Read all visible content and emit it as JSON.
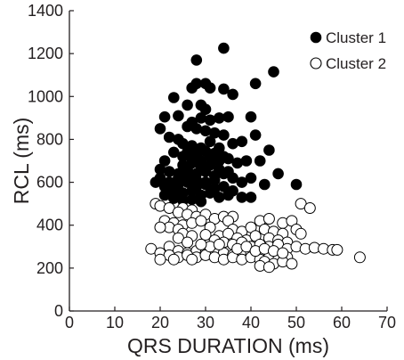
{
  "chart_data": {
    "type": "scatter",
    "title": "",
    "xlabel": "QRS DURATION (ms)",
    "ylabel": "RCL (ms)",
    "xlim": [
      0,
      70
    ],
    "ylim": [
      0,
      1400
    ],
    "xticks": [
      0,
      10,
      20,
      30,
      40,
      50,
      60,
      70
    ],
    "yticks": [
      0,
      200,
      400,
      600,
      800,
      1000,
      1200,
      1400
    ],
    "grid": false,
    "legend_position": "top-right",
    "series": [
      {
        "name": "Cluster 1",
        "marker": "filled-circle",
        "color": "#000000",
        "points": [
          [
            34,
            1225
          ],
          [
            28,
            1170
          ],
          [
            45,
            1115
          ],
          [
            28,
            1060
          ],
          [
            30,
            1060
          ],
          [
            31,
            1040
          ],
          [
            27,
            1040
          ],
          [
            34,
            1035
          ],
          [
            36,
            1010
          ],
          [
            41,
            1060
          ],
          [
            23,
            995
          ],
          [
            26,
            960
          ],
          [
            29,
            960
          ],
          [
            30,
            940
          ],
          [
            21,
            905
          ],
          [
            24,
            910
          ],
          [
            27,
            880
          ],
          [
            29,
            900
          ],
          [
            31,
            890
          ],
          [
            33,
            900
          ],
          [
            35,
            905
          ],
          [
            40,
            905
          ],
          [
            26,
            860
          ],
          [
            28,
            850
          ],
          [
            30,
            840
          ],
          [
            32,
            830
          ],
          [
            34,
            820
          ],
          [
            20,
            850
          ],
          [
            22,
            810
          ],
          [
            24,
            800
          ],
          [
            25,
            780
          ],
          [
            27,
            770
          ],
          [
            29,
            760
          ],
          [
            31,
            790
          ],
          [
            33,
            760
          ],
          [
            36,
            780
          ],
          [
            38,
            790
          ],
          [
            41,
            820
          ],
          [
            44,
            750
          ],
          [
            23,
            740
          ],
          [
            25,
            720
          ],
          [
            27,
            710
          ],
          [
            29,
            700
          ],
          [
            31,
            720
          ],
          [
            33,
            700
          ],
          [
            35,
            710
          ],
          [
            37,
            690
          ],
          [
            39,
            700
          ],
          [
            42,
            700
          ],
          [
            21,
            700
          ],
          [
            20,
            660
          ],
          [
            22,
            650
          ],
          [
            24,
            640
          ],
          [
            26,
            660
          ],
          [
            28,
            640
          ],
          [
            30,
            650
          ],
          [
            32,
            630
          ],
          [
            34,
            640
          ],
          [
            36,
            620
          ],
          [
            38,
            600
          ],
          [
            40,
            620
          ],
          [
            46,
            640
          ],
          [
            20,
            620
          ],
          [
            22,
            600
          ],
          [
            24,
            590
          ],
          [
            26,
            600
          ],
          [
            28,
            580
          ],
          [
            30,
            590
          ],
          [
            32,
            570
          ],
          [
            34,
            580
          ],
          [
            36,
            560
          ],
          [
            19,
            600
          ],
          [
            21,
            580
          ],
          [
            23,
            560
          ],
          [
            25,
            550
          ],
          [
            27,
            560
          ],
          [
            29,
            540
          ],
          [
            31,
            550
          ],
          [
            33,
            530
          ],
          [
            35,
            540
          ],
          [
            38,
            530
          ],
          [
            40,
            530
          ],
          [
            43,
            590
          ],
          [
            50,
            590
          ],
          [
            21,
            540
          ],
          [
            23,
            525
          ],
          [
            25,
            515
          ],
          [
            27,
            520
          ],
          [
            29,
            510
          ],
          [
            24,
            620
          ],
          [
            26,
            630
          ],
          [
            28,
            610
          ],
          [
            30,
            600
          ],
          [
            32,
            610
          ],
          [
            25,
            680
          ],
          [
            27,
            690
          ],
          [
            29,
            670
          ],
          [
            31,
            680
          ],
          [
            33,
            660
          ],
          [
            26,
            740
          ],
          [
            28,
            730
          ],
          [
            30,
            745
          ],
          [
            32,
            735
          ],
          [
            34,
            720
          ],
          [
            35,
            650
          ]
        ]
      },
      {
        "name": "Cluster 2",
        "marker": "open-circle",
        "color": "#000000",
        "points": [
          [
            51,
            500
          ],
          [
            53,
            480
          ],
          [
            19,
            500
          ],
          [
            20,
            490
          ],
          [
            22,
            480
          ],
          [
            25,
            480
          ],
          [
            27,
            470
          ],
          [
            24,
            460
          ],
          [
            26,
            450
          ],
          [
            28,
            440
          ],
          [
            30,
            450
          ],
          [
            32,
            430
          ],
          [
            34,
            440
          ],
          [
            36,
            440
          ],
          [
            21,
            420
          ],
          [
            23,
            410
          ],
          [
            25,
            400
          ],
          [
            27,
            410
          ],
          [
            29,
            420
          ],
          [
            31,
            390
          ],
          [
            35,
            420
          ],
          [
            42,
            420
          ],
          [
            44,
            430
          ],
          [
            47,
            410
          ],
          [
            49,
            420
          ],
          [
            22,
            390
          ],
          [
            24,
            380
          ],
          [
            36,
            380
          ],
          [
            38,
            370
          ],
          [
            40,
            390
          ],
          [
            43,
            380
          ],
          [
            45,
            370
          ],
          [
            47,
            360
          ],
          [
            50,
            380
          ],
          [
            20,
            390
          ],
          [
            25,
            360
          ],
          [
            27,
            350
          ],
          [
            30,
            355
          ],
          [
            33,
            350
          ],
          [
            35,
            360
          ],
          [
            37,
            340
          ],
          [
            39,
            330
          ],
          [
            41,
            350
          ],
          [
            44,
            340
          ],
          [
            46,
            330
          ],
          [
            48,
            320
          ],
          [
            51,
            360
          ],
          [
            24,
            340
          ],
          [
            26,
            320
          ],
          [
            32,
            330
          ],
          [
            34,
            320
          ],
          [
            36,
            310
          ],
          [
            38,
            320
          ],
          [
            40,
            300
          ],
          [
            42,
            310
          ],
          [
            44,
            300
          ],
          [
            46,
            310
          ],
          [
            48,
            290
          ],
          [
            50,
            300
          ],
          [
            52,
            290
          ],
          [
            54,
            295
          ],
          [
            56,
            290
          ],
          [
            58,
            285
          ],
          [
            59,
            285
          ],
          [
            18,
            290
          ],
          [
            22,
            300
          ],
          [
            24,
            280
          ],
          [
            26,
            270
          ],
          [
            28,
            280
          ],
          [
            30,
            270
          ],
          [
            32,
            280
          ],
          [
            34,
            270
          ],
          [
            36,
            260
          ],
          [
            38,
            280
          ],
          [
            40,
            270
          ],
          [
            42,
            260
          ],
          [
            44,
            270
          ],
          [
            46,
            260
          ],
          [
            48,
            250
          ],
          [
            20,
            270
          ],
          [
            22,
            260
          ],
          [
            24,
            250
          ],
          [
            26,
            260
          ],
          [
            28,
            250
          ],
          [
            30,
            260
          ],
          [
            32,
            250
          ],
          [
            34,
            240
          ],
          [
            36,
            250
          ],
          [
            38,
            240
          ],
          [
            40,
            250
          ],
          [
            42,
            240
          ],
          [
            44,
            250
          ],
          [
            46,
            240
          ],
          [
            20,
            240
          ],
          [
            23,
            240
          ],
          [
            27,
            240
          ],
          [
            43,
            230
          ],
          [
            45,
            220
          ],
          [
            47,
            230
          ],
          [
            49,
            220
          ],
          [
            42,
            210
          ],
          [
            44,
            205
          ],
          [
            64,
            250
          ],
          [
            37,
            290
          ],
          [
            39,
            300
          ],
          [
            41,
            280
          ],
          [
            43,
            290
          ],
          [
            45,
            280
          ],
          [
            47,
            270
          ],
          [
            31,
            300
          ],
          [
            33,
            310
          ],
          [
            29,
            310
          ]
        ]
      }
    ]
  }
}
